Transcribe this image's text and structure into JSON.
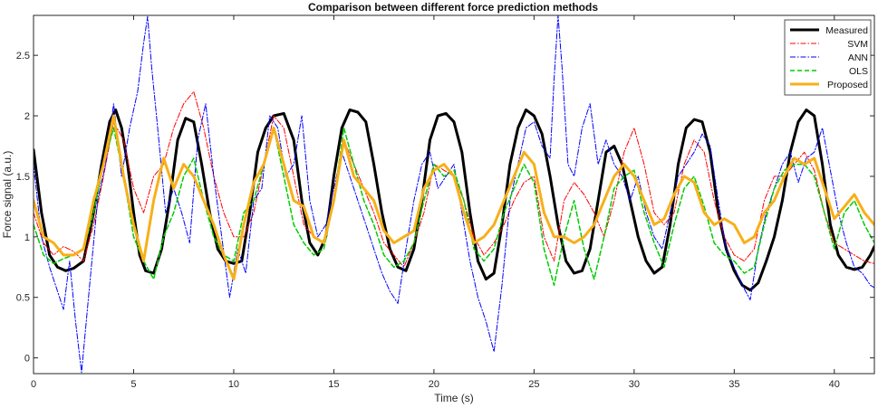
{
  "chart_data": {
    "type": "line",
    "title": "Comparison between different force prediction methods",
    "xlabel": "Time (s)",
    "ylabel": "Force signal (a.u.)",
    "xlim": [
      0,
      42
    ],
    "ylim": [
      -0.13,
      2.83
    ],
    "x_ticks": [
      0,
      5,
      10,
      15,
      20,
      25,
      30,
      35,
      40
    ],
    "y_ticks": [
      0,
      0.5,
      1,
      1.5,
      2,
      2.5
    ],
    "x_tick_labels": [
      "0",
      "5",
      "10",
      "15",
      "20",
      "25",
      "30",
      "35",
      "40"
    ],
    "y_tick_labels": [
      "0",
      "0.5",
      "1",
      "1.5",
      "2",
      "2.5"
    ],
    "grid": false,
    "legend_position": "top-right",
    "series": [
      {
        "name": "Measured",
        "color": "#000000",
        "style": "solid",
        "width": 3,
        "x": [
          0,
          0.4,
          0.8,
          1.2,
          1.6,
          2.0,
          2.5,
          3.0,
          3.4,
          3.8,
          4.1,
          4.4,
          4.7,
          5.0,
          5.3,
          5.6,
          6.0,
          6.4,
          6.8,
          7.2,
          7.6,
          8.0,
          8.4,
          8.8,
          9.2,
          9.6,
          10.0,
          10.4,
          10.8,
          11.2,
          11.6,
          12.0,
          12.5,
          13.0,
          13.4,
          13.8,
          14.2,
          14.6,
          15.0,
          15.4,
          15.8,
          16.2,
          16.6,
          17.0,
          17.4,
          17.8,
          18.2,
          18.6,
          19.0,
          19.4,
          19.8,
          20.2,
          20.6,
          21.0,
          21.4,
          21.8,
          22.2,
          22.6,
          23.0,
          23.4,
          23.8,
          24.2,
          24.6,
          25.0,
          25.4,
          25.8,
          26.2,
          26.6,
          27.0,
          27.4,
          27.8,
          28.2,
          28.6,
          29.0,
          29.4,
          29.8,
          30.2,
          30.6,
          31.0,
          31.4,
          31.8,
          32.2,
          32.6,
          33.0,
          33.4,
          33.8,
          34.2,
          34.6,
          35.0,
          35.4,
          35.8,
          36.2,
          36.6,
          37.0,
          37.4,
          37.8,
          38.2,
          38.6,
          39.0,
          39.4,
          39.8,
          40.2,
          40.6,
          41.0,
          41.4,
          41.8,
          42.0
        ],
        "y": [
          1.72,
          1.2,
          0.85,
          0.75,
          0.72,
          0.74,
          0.8,
          1.2,
          1.6,
          1.95,
          2.05,
          1.9,
          1.6,
          1.2,
          0.85,
          0.72,
          0.7,
          0.9,
          1.3,
          1.8,
          1.98,
          1.95,
          1.6,
          1.2,
          0.9,
          0.8,
          0.78,
          0.8,
          1.2,
          1.7,
          1.9,
          2.0,
          2.02,
          1.8,
          1.3,
          0.95,
          0.85,
          1.0,
          1.5,
          1.9,
          2.05,
          2.03,
          1.95,
          1.6,
          1.2,
          0.9,
          0.75,
          0.72,
          0.9,
          1.3,
          1.8,
          2.0,
          2.02,
          1.95,
          1.7,
          1.2,
          0.8,
          0.65,
          0.7,
          1.1,
          1.6,
          1.9,
          2.05,
          2.0,
          1.85,
          1.5,
          1.1,
          0.8,
          0.7,
          0.72,
          0.9,
          1.3,
          1.7,
          1.75,
          1.6,
          1.3,
          1.0,
          0.8,
          0.7,
          0.75,
          1.1,
          1.6,
          1.9,
          1.97,
          1.95,
          1.7,
          1.2,
          0.9,
          0.72,
          0.6,
          0.56,
          0.62,
          0.8,
          1.0,
          1.3,
          1.7,
          1.95,
          2.05,
          2.0,
          1.6,
          1.1,
          0.85,
          0.75,
          0.73,
          0.75,
          0.85,
          0.92
        ]
      },
      {
        "name": "SVM",
        "color": "#ff0000",
        "style": "dashdot",
        "width": 1,
        "x": [
          0,
          0.5,
          1.0,
          1.5,
          2.0,
          2.5,
          3.0,
          3.5,
          4.0,
          4.5,
          5.0,
          5.5,
          6.0,
          6.5,
          7.0,
          7.5,
          8.0,
          8.5,
          9.0,
          9.5,
          10.0,
          10.5,
          11.0,
          11.5,
          12.0,
          12.5,
          13.0,
          13.5,
          14.0,
          14.5,
          15.0,
          15.5,
          16.0,
          16.5,
          17.0,
          17.5,
          18.0,
          18.5,
          19.0,
          19.5,
          20.0,
          20.5,
          21.0,
          21.5,
          22.0,
          22.5,
          23.0,
          23.5,
          24.0,
          24.5,
          25.0,
          25.5,
          26.0,
          26.5,
          27.0,
          27.5,
          28.0,
          28.5,
          29.0,
          29.5,
          30.0,
          30.5,
          31.0,
          31.5,
          32.0,
          32.5,
          33.0,
          33.5,
          34.0,
          34.5,
          35.0,
          35.5,
          36.0,
          36.5,
          37.0,
          37.5,
          38.0,
          38.5,
          39.0,
          39.5,
          40.0,
          40.5,
          41.0,
          41.5,
          42.0
        ],
        "y": [
          1.2,
          0.95,
          0.85,
          0.92,
          0.88,
          0.8,
          1.1,
          1.5,
          1.95,
          1.8,
          1.4,
          1.2,
          1.5,
          1.6,
          1.9,
          2.1,
          2.2,
          1.9,
          1.5,
          1.2,
          1.0,
          1.0,
          1.2,
          1.6,
          2.0,
          1.9,
          1.5,
          1.1,
          1.0,
          0.95,
          1.3,
          1.8,
          1.6,
          1.4,
          1.2,
          0.95,
          0.85,
          0.75,
          0.95,
          1.2,
          1.6,
          1.55,
          1.5,
          1.3,
          1.0,
          0.85,
          0.95,
          1.1,
          1.3,
          1.45,
          1.5,
          1.0,
          0.8,
          1.3,
          1.45,
          1.35,
          1.2,
          1.0,
          1.3,
          1.7,
          1.9,
          1.6,
          1.2,
          1.1,
          1.2,
          1.6,
          1.8,
          1.7,
          1.3,
          1.0,
          0.85,
          0.8,
          0.9,
          1.3,
          1.5,
          1.5,
          1.6,
          1.7,
          1.55,
          1.2,
          0.95,
          0.9,
          0.85,
          0.8,
          0.78
        ]
      },
      {
        "name": "ANN",
        "color": "#0000ff",
        "style": "dashdot",
        "width": 1,
        "x": [
          0,
          0.4,
          0.8,
          1.2,
          1.5,
          1.8,
          2.1,
          2.4,
          2.8,
          3.2,
          3.6,
          4.0,
          4.4,
          4.8,
          5.2,
          5.5,
          5.7,
          5.9,
          6.2,
          6.6,
          7.0,
          7.4,
          7.8,
          8.2,
          8.6,
          9.0,
          9.4,
          9.8,
          10.2,
          10.6,
          11.0,
          11.4,
          11.8,
          12.2,
          12.6,
          13.0,
          13.4,
          13.8,
          14.2,
          14.6,
          15.0,
          15.4,
          15.8,
          16.2,
          16.6,
          17.0,
          17.4,
          17.8,
          18.2,
          18.6,
          19.0,
          19.4,
          19.8,
          20.2,
          20.6,
          21.0,
          21.4,
          21.8,
          22.2,
          22.6,
          23.0,
          23.4,
          23.8,
          24.2,
          24.6,
          25.0,
          25.4,
          25.8,
          26.0,
          26.2,
          26.4,
          26.7,
          27.0,
          27.4,
          27.8,
          28.2,
          28.6,
          29.0,
          29.4,
          29.8,
          30.2,
          30.6,
          31.0,
          31.4,
          31.8,
          32.2,
          32.6,
          33.0,
          33.4,
          33.8,
          34.2,
          34.6,
          35.0,
          35.4,
          35.8,
          36.2,
          36.6,
          37.0,
          37.4,
          37.8,
          38.2,
          38.6,
          39.0,
          39.4,
          39.8,
          40.2,
          40.6,
          41.0,
          41.4,
          41.8,
          42.0
        ],
        "y": [
          1.6,
          1.0,
          0.75,
          0.55,
          0.4,
          0.8,
          0.3,
          -0.12,
          0.6,
          1.3,
          1.6,
          2.1,
          1.5,
          1.9,
          2.2,
          2.6,
          2.82,
          2.4,
          1.9,
          1.2,
          1.4,
          1.2,
          0.95,
          1.8,
          2.1,
          1.5,
          1.0,
          0.5,
          0.9,
          0.7,
          1.3,
          1.4,
          2.0,
          1.9,
          1.5,
          1.6,
          2.0,
          1.3,
          1.0,
          1.1,
          1.4,
          1.7,
          1.5,
          1.3,
          1.1,
          0.9,
          0.7,
          0.55,
          0.45,
          0.9,
          1.3,
          1.6,
          1.7,
          1.4,
          1.5,
          1.6,
          1.2,
          0.8,
          0.5,
          0.3,
          0.05,
          0.6,
          1.3,
          1.6,
          1.9,
          1.95,
          1.75,
          1.65,
          2.3,
          2.83,
          2.4,
          1.6,
          1.5,
          1.9,
          2.1,
          1.6,
          1.8,
          1.6,
          1.5,
          1.3,
          1.5,
          1.2,
          1.0,
          0.9,
          1.2,
          1.5,
          1.6,
          1.7,
          1.85,
          1.75,
          1.3,
          0.9,
          0.75,
          0.6,
          0.48,
          0.9,
          1.2,
          1.4,
          1.6,
          1.7,
          1.45,
          1.65,
          1.7,
          1.9,
          1.55,
          1.2,
          0.95,
          0.75,
          0.7,
          0.6,
          0.58
        ]
      },
      {
        "name": "OLS",
        "color": "#00cc00",
        "style": "dashed",
        "width": 1.5,
        "x": [
          0,
          0.5,
          1.0,
          1.5,
          2.0,
          2.5,
          3.0,
          3.5,
          4.0,
          4.5,
          5.0,
          5.5,
          6.0,
          6.5,
          7.0,
          7.5,
          8.0,
          8.5,
          9.0,
          9.5,
          10.0,
          10.5,
          11.0,
          11.5,
          12.0,
          12.5,
          13.0,
          13.5,
          14.0,
          14.5,
          15.0,
          15.5,
          16.0,
          16.5,
          17.0,
          17.5,
          18.0,
          18.5,
          19.0,
          19.5,
          20.0,
          20.5,
          21.0,
          21.5,
          22.0,
          22.5,
          23.0,
          23.5,
          24.0,
          24.5,
          25.0,
          25.5,
          26.0,
          26.5,
          27.0,
          27.5,
          28.0,
          28.5,
          29.0,
          29.5,
          30.0,
          30.5,
          31.0,
          31.5,
          32.0,
          32.5,
          33.0,
          33.5,
          34.0,
          34.5,
          35.0,
          35.5,
          36.0,
          36.5,
          37.0,
          37.5,
          38.0,
          38.5,
          39.0,
          39.5,
          40.0,
          40.5,
          41.0,
          41.5,
          42.0
        ],
        "y": [
          1.1,
          0.85,
          0.78,
          0.82,
          0.85,
          0.9,
          1.2,
          1.6,
          1.9,
          1.5,
          1.0,
          0.8,
          0.65,
          1.0,
          1.2,
          1.5,
          1.65,
          1.3,
          1.0,
          0.85,
          0.8,
          1.2,
          1.3,
          1.6,
          1.9,
          1.5,
          1.1,
          0.95,
          0.85,
          0.9,
          1.3,
          1.9,
          1.6,
          1.3,
          1.1,
          0.85,
          0.75,
          0.8,
          0.95,
          1.3,
          1.6,
          1.5,
          1.55,
          1.3,
          0.9,
          0.8,
          0.9,
          1.2,
          1.4,
          1.6,
          1.45,
          0.9,
          0.6,
          1.0,
          1.3,
          0.9,
          0.65,
          1.0,
          1.4,
          1.5,
          1.55,
          1.2,
          0.95,
          0.75,
          1.1,
          1.4,
          1.5,
          1.25,
          0.95,
          0.85,
          0.8,
          0.7,
          0.75,
          1.1,
          1.4,
          1.55,
          1.6,
          1.6,
          1.5,
          1.2,
          0.9,
          1.2,
          1.3,
          1.1,
          0.95
        ]
      },
      {
        "name": "Proposed",
        "color": "#f7b019",
        "style": "solid",
        "width": 3,
        "x": [
          0,
          0.5,
          1.0,
          1.5,
          2.0,
          2.5,
          3.0,
          3.5,
          4.0,
          4.5,
          5.0,
          5.5,
          6.0,
          6.5,
          7.0,
          7.5,
          8.0,
          8.5,
          9.0,
          9.5,
          10.0,
          10.5,
          11.0,
          11.5,
          12.0,
          12.5,
          13.0,
          13.5,
          14.0,
          14.5,
          15.0,
          15.5,
          16.0,
          16.5,
          17.0,
          17.5,
          18.0,
          18.5,
          19.0,
          19.5,
          20.0,
          20.5,
          21.0,
          21.5,
          22.0,
          22.5,
          23.0,
          23.5,
          24.0,
          24.5,
          25.0,
          25.5,
          26.0,
          26.5,
          27.0,
          27.5,
          28.0,
          28.5,
          29.0,
          29.5,
          30.0,
          30.5,
          31.0,
          31.5,
          32.0,
          32.5,
          33.0,
          33.5,
          34.0,
          34.5,
          35.0,
          35.5,
          36.0,
          36.5,
          37.0,
          37.5,
          38.0,
          38.5,
          39.0,
          39.5,
          40.0,
          40.5,
          41.0,
          41.5,
          42.0
        ],
        "y": [
          1.3,
          1.0,
          0.95,
          0.85,
          0.85,
          0.9,
          1.3,
          1.6,
          2.0,
          1.5,
          1.1,
          0.8,
          1.3,
          1.65,
          1.4,
          1.6,
          1.5,
          1.3,
          1.1,
          0.85,
          0.65,
          1.1,
          1.45,
          1.6,
          1.9,
          1.6,
          1.3,
          1.25,
          1.0,
          0.95,
          1.3,
          1.8,
          1.5,
          1.4,
          1.3,
          1.05,
          0.95,
          1.0,
          1.05,
          1.4,
          1.55,
          1.6,
          1.5,
          1.2,
          0.95,
          1.0,
          1.1,
          1.3,
          1.5,
          1.7,
          1.6,
          1.2,
          1.0,
          1.0,
          0.95,
          1.0,
          1.1,
          1.3,
          1.5,
          1.6,
          1.5,
          1.3,
          1.1,
          1.15,
          1.35,
          1.5,
          1.45,
          1.2,
          1.1,
          1.15,
          1.1,
          0.95,
          1.0,
          1.2,
          1.3,
          1.5,
          1.65,
          1.6,
          1.65,
          1.4,
          1.15,
          1.25,
          1.35,
          1.2,
          1.1
        ]
      }
    ]
  }
}
